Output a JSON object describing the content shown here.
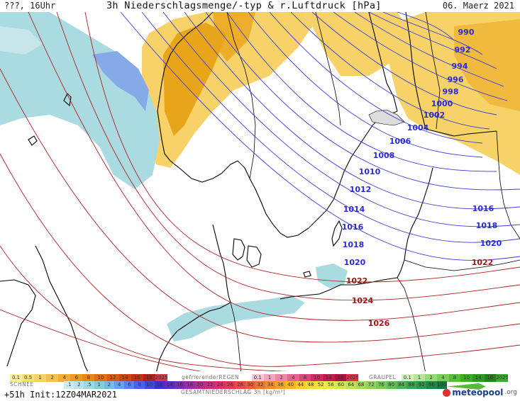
{
  "header": {
    "left": "???, 16Uhr",
    "title": "3h Niederschlagsmenge/-typ & r.Luftdruck [hPa]",
    "date": "06. Maerz 2021"
  },
  "footer": {
    "run_info": "+51h Init:12Z04MAR2021",
    "logo_text": "meteopool",
    "logo_suffix": ".org"
  },
  "colors": {
    "rain_heavy": "#e9a51a",
    "rain_light": "#f7d268",
    "snow_light": "#a9dbe0",
    "snow_heavy": "#86a9e8",
    "isobar_low": "#2a2ad8",
    "isobar_high": "#b02020",
    "coast": "#000000",
    "border": "#000000"
  },
  "isobars": [
    {
      "value": "990",
      "color": "#2a2ad8"
    },
    {
      "value": "992",
      "color": "#2a2ad8"
    },
    {
      "value": "994",
      "color": "#2a2ad8"
    },
    {
      "value": "996",
      "color": "#2a2ad8"
    },
    {
      "value": "998",
      "color": "#2a2ad8"
    },
    {
      "value": "1000",
      "color": "#2a2ad8"
    },
    {
      "value": "1002",
      "color": "#2a2ad8"
    },
    {
      "value": "1004",
      "color": "#2a2ad8"
    },
    {
      "value": "1006",
      "color": "#2a2ad8"
    },
    {
      "value": "1008",
      "color": "#2a2ad8"
    },
    {
      "value": "1010",
      "color": "#2a2ad8"
    },
    {
      "value": "1012",
      "color": "#2a2ad8"
    },
    {
      "value": "1014",
      "color": "#2a2ad8"
    },
    {
      "value": "1016",
      "color": "#2a2ad8"
    },
    {
      "value": "1016",
      "color": "#2a2ad8"
    },
    {
      "value": "1018",
      "color": "#2a2ad8"
    },
    {
      "value": "1018",
      "color": "#2a2ad8"
    },
    {
      "value": "1020",
      "color": "#2a2ad8"
    },
    {
      "value": "1020",
      "color": "#2a2ad8"
    },
    {
      "value": "1022",
      "color": "#a01818"
    },
    {
      "value": "1022",
      "color": "#a01818"
    },
    {
      "value": "1024",
      "color": "#a01818"
    },
    {
      "value": "1026",
      "color": "#a01818"
    }
  ],
  "legend": {
    "snow_caption": "SCHNEE",
    "fz_rain_caption": "gefrierenderREGEN",
    "graupel_caption": "GRAUPEL",
    "total_caption": "GESAMTNIEDERSCHLAG 3h [kg/m²]",
    "rain_scale": [
      "0.1",
      "0.5",
      "1",
      "2",
      "4",
      "6",
      "8",
      "10",
      "12",
      "14",
      "16",
      "18",
      "2025+"
    ],
    "fz_rain_scale": [
      "0.1",
      "1",
      "2",
      "4",
      "8",
      "10",
      "14",
      "16",
      "2025+"
    ],
    "graupel_scale": [
      "0.1",
      "1",
      "2",
      "4",
      "8",
      "10",
      "14",
      "16",
      "2025+"
    ],
    "total_scale": [
      ".1",
      "2",
      ".5",
      "1",
      "2",
      "4",
      "6",
      "8",
      "10",
      "12",
      "14",
      "16",
      "18",
      "20",
      "22",
      "24",
      "26",
      "28",
      "30",
      "32",
      "34",
      "36",
      "40",
      "44",
      "48",
      "52",
      "56",
      "60",
      "64",
      "68",
      "72",
      "76",
      "80",
      "84",
      "88",
      "92",
      "96",
      "100"
    ]
  }
}
